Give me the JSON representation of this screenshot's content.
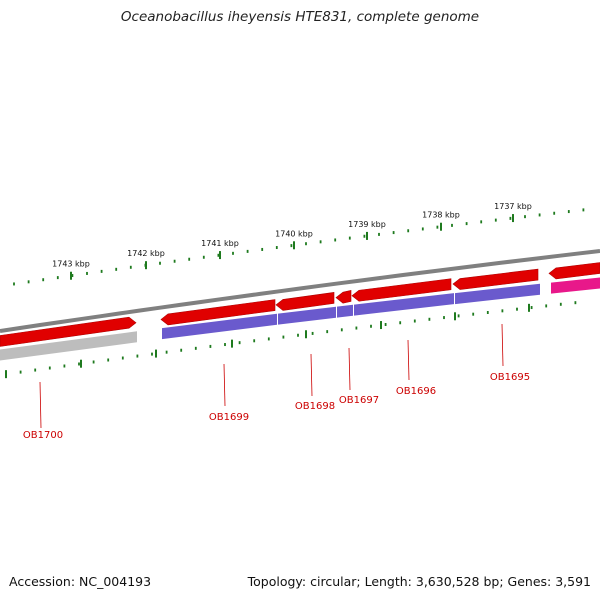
{
  "title": "Oceanobacillus iheyensis HTE831, complete genome",
  "footer": {
    "accession": "Accession: NC_004193",
    "summary": "Topology: circular; Length: 3,630,528 bp; Genes: 3,591"
  },
  "colors": {
    "backbone": "#808080",
    "forward_gene": "#e00000",
    "reverse_gene_blue": "#6a5acd",
    "reverse_gene_pink": "#e8188a",
    "reverse_gene_gray": "#bdbdbd",
    "tick": "#1e7a1e",
    "gene_label": "#cc0000"
  },
  "kbp_labels": [
    "1743 kbp",
    "1742 kbp",
    "1741 kbp",
    "1740 kbp",
    "1739 kbp",
    "1738 kbp",
    "1737 kbp"
  ],
  "genes": [
    "OB1700",
    "OB1699",
    "OB1698",
    "OB1697",
    "OB1696",
    "OB1695"
  ]
}
